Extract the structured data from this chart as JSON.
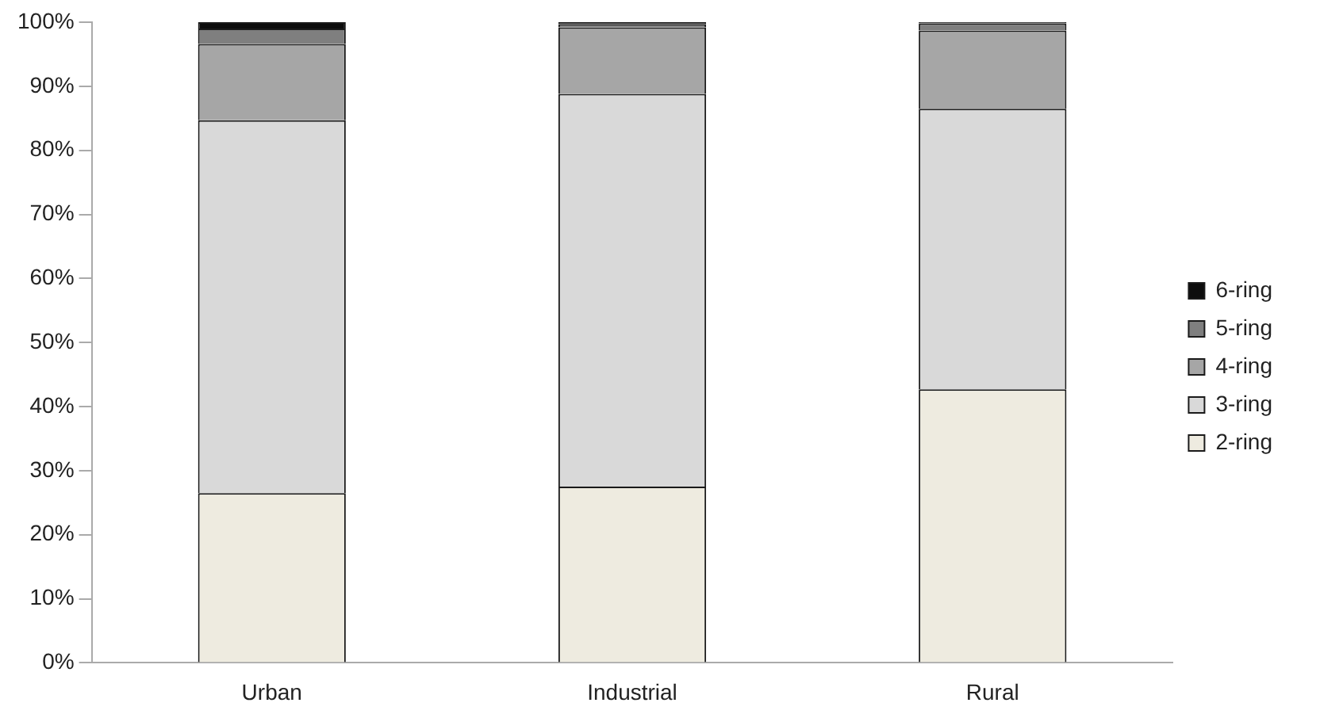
{
  "chart_data": {
    "type": "bar",
    "stacked": true,
    "categories": [
      "Urban",
      "Industrial",
      "Rural"
    ],
    "series": [
      {
        "name": "2-ring",
        "color": "#eeebe0",
        "values": [
          26.5,
          27.5,
          42.7
        ]
      },
      {
        "name": "3-ring",
        "color": "#d9d9d9",
        "values": [
          58.2,
          61.3,
          43.8
        ]
      },
      {
        "name": "4-ring",
        "color": "#a6a6a6",
        "values": [
          11.9,
          10.4,
          12.2
        ]
      },
      {
        "name": "5-ring",
        "color": "#7f7f7f",
        "values": [
          2.4,
          0.5,
          1.1
        ]
      },
      {
        "name": "6-ring",
        "color": "#0d0d0d",
        "values": [
          1.0,
          0.3,
          0.2
        ]
      }
    ],
    "ylim": [
      0,
      100
    ],
    "yticks": [
      {
        "value": 0,
        "label": "0%"
      },
      {
        "value": 10,
        "label": "10%"
      },
      {
        "value": 20,
        "label": "20%"
      },
      {
        "value": 30,
        "label": "30%"
      },
      {
        "value": 40,
        "label": "40%"
      },
      {
        "value": 50,
        "label": "50%"
      },
      {
        "value": 60,
        "label": "60%"
      },
      {
        "value": 70,
        "label": "70%"
      },
      {
        "value": 80,
        "label": "80%"
      },
      {
        "value": 90,
        "label": "90%"
      },
      {
        "value": 100,
        "label": "100%"
      }
    ],
    "grid": false,
    "legend": "right"
  }
}
